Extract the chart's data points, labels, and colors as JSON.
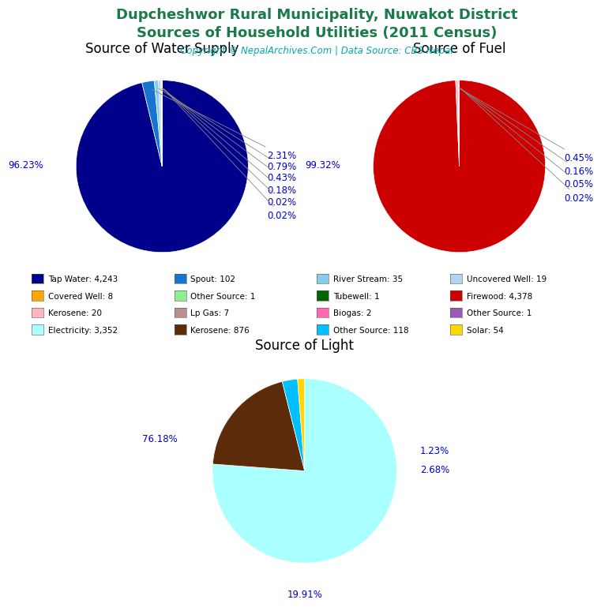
{
  "title_main": "Dupcheshwor Rural Municipality, Nuwakot District\nSources of Household Utilities (2011 Census)",
  "title_color": "#1a7a4a",
  "copyright_text": "Copyright © NepalArchives.Com | Data Source: CBS Nepal",
  "copyright_color": "#00aaaa",
  "water_title": "Source of Water Supply",
  "water_values": [
    4243,
    102,
    35,
    19,
    8,
    1,
    1
  ],
  "water_colors": [
    "#00008B",
    "#1874CD",
    "#87CEEB",
    "#B0D4F1",
    "#FFA500",
    "#90EE90",
    "#006400"
  ],
  "water_pct_labels": [
    "96.23%",
    "2.31%",
    "0.79%",
    "0.43%",
    "0.18%",
    "0.02%",
    "0.02%"
  ],
  "fuel_title": "Source of Fuel",
  "fuel_values": [
    4378,
    20,
    7,
    2,
    1
  ],
  "fuel_colors": [
    "#CC0000",
    "#FFB6C1",
    "#BC8F8F",
    "#FF69B4",
    "#9B59B6"
  ],
  "fuel_pct_labels": [
    "99.32%",
    "0.45%",
    "0.16%",
    "0.05%",
    "0.02%"
  ],
  "light_title": "Source of Light",
  "light_values": [
    3352,
    876,
    118,
    54
  ],
  "light_colors": [
    "#AAFFFF",
    "#5C2C0A",
    "#00BFFF",
    "#FFD700"
  ],
  "light_pct_labels": [
    "76.18%",
    "19.91%",
    "2.68%",
    "1.23%"
  ],
  "legend_entries": [
    {
      "label": "Tap Water: 4,243",
      "color": "#00008B"
    },
    {
      "label": "Spout: 102",
      "color": "#1874CD"
    },
    {
      "label": "River Stream: 35",
      "color": "#87CEEB"
    },
    {
      "label": "Uncovered Well: 19",
      "color": "#B0D4F1"
    },
    {
      "label": "Covered Well: 8",
      "color": "#FFA500"
    },
    {
      "label": "Other Source: 1",
      "color": "#90EE90"
    },
    {
      "label": "Tubewell: 1",
      "color": "#006400"
    },
    {
      "label": "Firewood: 4,378",
      "color": "#CC0000"
    },
    {
      "label": "Kerosene: 20",
      "color": "#FFB6C1"
    },
    {
      "label": "Lp Gas: 7",
      "color": "#BC8F8F"
    },
    {
      "label": "Biogas: 2",
      "color": "#FF69B4"
    },
    {
      "label": "Other Source: 1",
      "color": "#9B59B6"
    },
    {
      "label": "Electricity: 3,352",
      "color": "#AAFFFF"
    },
    {
      "label": "Kerosene: 876",
      "color": "#5C2C0A"
    },
    {
      "label": "Other Source: 118",
      "color": "#00BFFF"
    },
    {
      "label": "Solar: 54",
      "color": "#FFD700"
    }
  ],
  "bg_color": "#ffffff",
  "label_color": "#0000CD",
  "pct_fontsize": 8.5,
  "title_fontsize": 13,
  "subtitle_fontsize": 8.5,
  "pie_title_fontsize": 12
}
